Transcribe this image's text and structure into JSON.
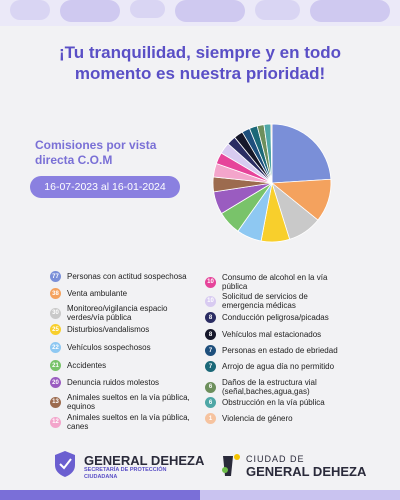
{
  "chart_data": {
    "type": "pie",
    "title": "¡Tu tranquilidad, siempre y en todo momento es nuestra prioridad!",
    "subtitle": "Comisiones por vista directa C.O.M",
    "date_range": "16-07-2023 al 16-01-2024",
    "categories": [
      "Personas con actitud sospechosa",
      "Venta ambulante",
      "Monitoreo/vigilancia espacio verdes/vía pública",
      "Disturbios/vandalismos",
      "Vehículos sospechosos",
      "Accidentes",
      "Denuncia ruidos molestos",
      "Animales sueltos en la vía pública, equinos",
      "Animales sueltos en la vía pública, canes",
      "Consumo de alcohol en la vía pública",
      "Solicitud de servicios de emergencia médicas",
      "Conducción peligrosa/picadas",
      "Vehículos mal estacionados",
      "Personas en estado de ebriedad",
      "Arrojo de agua día no permitido",
      "Daños de la estructura vial (señal,baches,agua,gas)",
      "Obstrucción en la vía pública",
      "Violencia de género"
    ],
    "values": [
      77,
      38,
      30,
      25,
      22,
      21,
      20,
      13,
      12,
      10,
      10,
      8,
      8,
      7,
      7,
      6,
      6,
      1
    ],
    "colors": [
      "#7a8fd8",
      "#f4a25e",
      "#c9c9c9",
      "#f8cf2c",
      "#8ec8f2",
      "#79c36a",
      "#9a5cc0",
      "#9c6b4e",
      "#f3a5cb",
      "#e6449a",
      "#d8cbf1",
      "#2b2d63",
      "#16172a",
      "#1e4f7c",
      "#1b6878",
      "#6d8f5c",
      "#4fa7a6",
      "#f6c39f"
    ]
  },
  "footer": {
    "left_name": "GENERAL DEHEZA",
    "left_line1": "SECRETARÍA DE PROTECCIÓN",
    "left_line2": "CIUDADANA",
    "right_top": "CIUDAD DE",
    "right_name": "GENERAL DEHEZA"
  }
}
